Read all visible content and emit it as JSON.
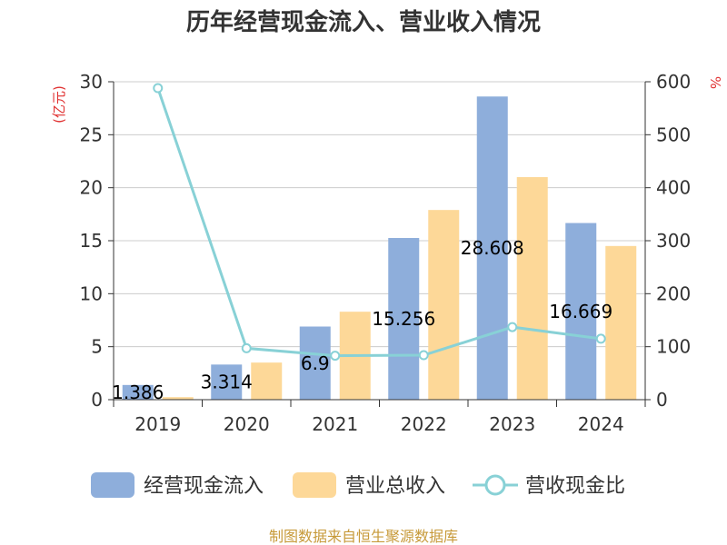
{
  "chart_data": {
    "type": "bar",
    "title": "历年经营现金流入、营业收入情况",
    "categories": [
      "2019",
      "2020",
      "2021",
      "2022",
      "2023",
      "2024"
    ],
    "series": [
      {
        "name": "经营现金流入",
        "type": "bar",
        "axis": "left",
        "color": "#8eaedb",
        "values": [
          1.386,
          3.314,
          6.9,
          15.256,
          28.608,
          16.669
        ],
        "labels": [
          "1.386",
          "3.314",
          "6.9",
          "15.256",
          "28.608",
          "16.669"
        ]
      },
      {
        "name": "营业总收入",
        "type": "bar",
        "axis": "left",
        "color": "#fdd898",
        "values": [
          0.24,
          3.5,
          8.3,
          17.9,
          21.0,
          14.5
        ]
      },
      {
        "name": "营收现金比",
        "type": "line",
        "axis": "right",
        "color": "#88d1d6",
        "values": [
          588,
          97,
          83,
          84,
          137,
          115
        ]
      }
    ],
    "y_left": {
      "label": "(亿元)",
      "min": 0,
      "max": 30,
      "ticks": [
        0,
        5,
        10,
        15,
        20,
        25,
        30
      ]
    },
    "y_right": {
      "label": "%",
      "min": 0,
      "max": 600,
      "ticks": [
        0,
        100,
        200,
        300,
        400,
        500,
        600
      ]
    },
    "grid": true,
    "legend_position": "bottom",
    "source": "制图数据来自恒生聚源数据库",
    "colors": {
      "axis_label": "#e03030",
      "source": "#c79a3a",
      "grid": "#cccccc"
    }
  }
}
